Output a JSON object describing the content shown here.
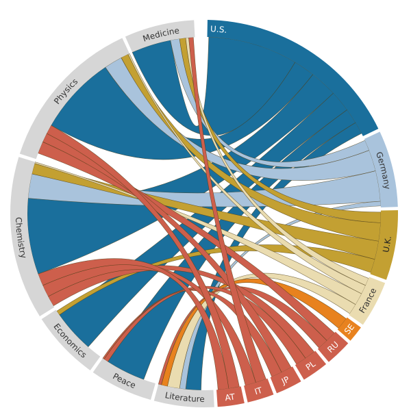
{
  "diagram": {
    "type": "chord",
    "countries": [
      {
        "id": "us",
        "label": "U.S.",
        "color": "#1a6f9c",
        "text_color": "#ffffff"
      },
      {
        "id": "germany",
        "label": "Germany",
        "color": "#a9c3dc",
        "text_color": "#333333"
      },
      {
        "id": "uk",
        "label": "U.K.",
        "color": "#c3a032",
        "text_color": "#222222"
      },
      {
        "id": "france",
        "label": "France",
        "color": "#eadcb0",
        "text_color": "#333333"
      },
      {
        "id": "se",
        "label": "SE",
        "color": "#e8821e",
        "text_color": "#ffffff"
      },
      {
        "id": "ru",
        "label": "RU",
        "color": "#cd5f4c",
        "text_color": "#ffffff"
      },
      {
        "id": "pl",
        "label": "PL",
        "color": "#cd5f4c",
        "text_color": "#ffffff"
      },
      {
        "id": "jp",
        "label": "JP",
        "color": "#cd5f4c",
        "text_color": "#ffffff"
      },
      {
        "id": "it",
        "label": "IT",
        "color": "#cd5f4c",
        "text_color": "#ffffff"
      },
      {
        "id": "at",
        "label": "AT",
        "color": "#cd5f4c",
        "text_color": "#ffffff"
      }
    ],
    "fields": [
      {
        "id": "literature",
        "label": "Literature"
      },
      {
        "id": "peace",
        "label": "Peace"
      },
      {
        "id": "economics",
        "label": "Economics"
      },
      {
        "id": "chemistry",
        "label": "Chemistry"
      },
      {
        "id": "physics",
        "label": "Physics"
      },
      {
        "id": "medicine",
        "label": "Medicine"
      }
    ],
    "field_color": "#d6d6d6",
    "field_text_color": "#333333"
  }
}
